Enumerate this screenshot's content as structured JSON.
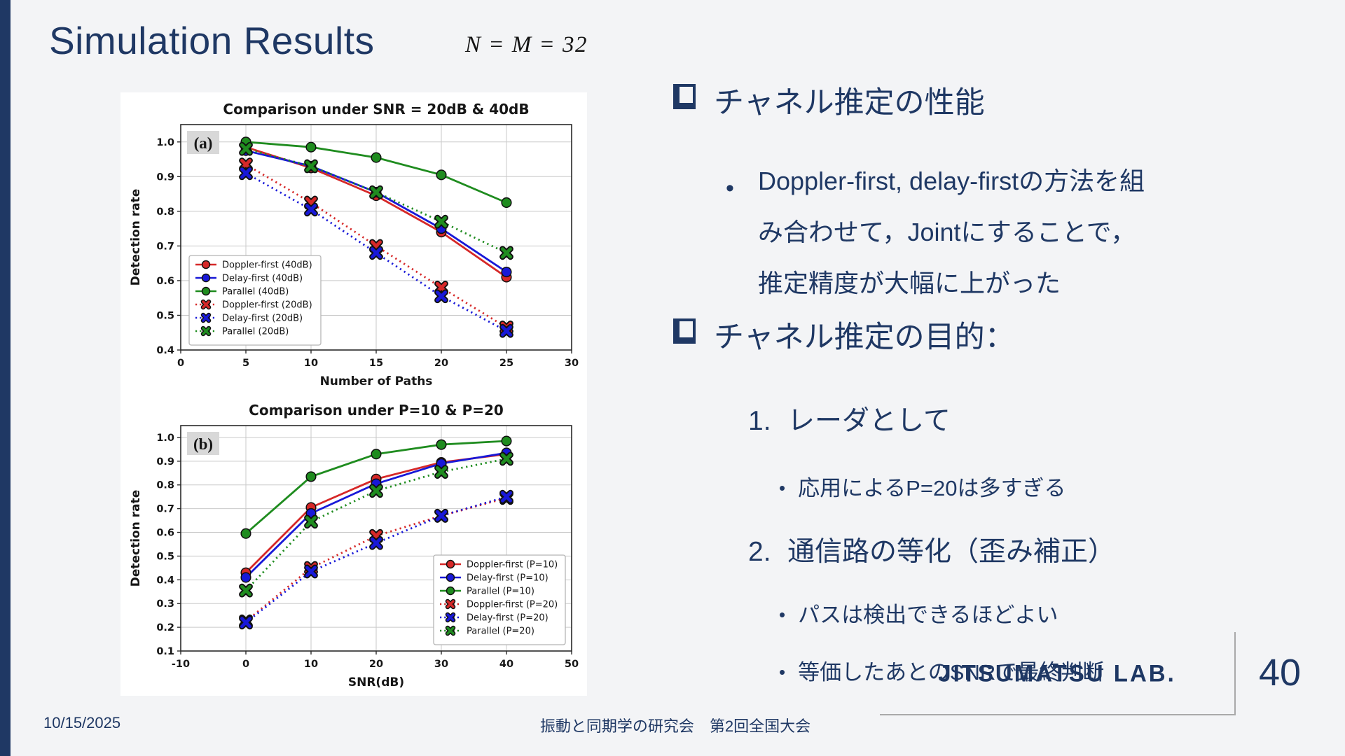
{
  "slide": {
    "title": "Simulation Results",
    "formula": "N = M = 32"
  },
  "ui": {
    "dot": "•"
  },
  "content": {
    "sections": [
      {
        "bullet": "チャネル推定の性能",
        "lines": [
          "Doppler-first, delay-firstの方法を組",
          "み合わせて，Jointにすることで，",
          "推定精度が大幅に上がった"
        ]
      },
      {
        "bullet": "チャネル推定の目的：",
        "numbered": [
          {
            "num": "1.",
            "text": "レーダとして",
            "subs": [
              "応用によるP=20は多すぎる"
            ]
          },
          {
            "num": "2.",
            "text": "通信路の等化（歪み補正）",
            "subs": [
              "パスは検出できるほどよい",
              "等価したあとのSNRで最終判断"
            ]
          }
        ]
      }
    ]
  },
  "footer": {
    "date": "10/15/2025",
    "center": "振動と同期学の研究会　第2回全国大会",
    "logo": "JITSUMATSU LAB.",
    "page": "40"
  },
  "chart_data": [
    {
      "type": "line",
      "title": "Comparison under SNR = 20dB & 40dB",
      "panel_label": "(a)",
      "xlabel": "Number of Paths",
      "ylabel": "Detection rate",
      "x": [
        5,
        10,
        15,
        20,
        25
      ],
      "xlim": [
        0,
        30
      ],
      "ylim": [
        0.4,
        1.05
      ],
      "xticks": [
        0,
        5,
        10,
        15,
        20,
        25,
        30
      ],
      "yticks": [
        0.4,
        0.5,
        0.6,
        0.7,
        0.8,
        0.9,
        1.0
      ],
      "grid": true,
      "legend_position": "lower-left",
      "series": [
        {
          "name": "Doppler-first (40dB)",
          "color": "#d62828",
          "style": "solid",
          "marker": "circle",
          "values": [
            0.985,
            0.925,
            0.845,
            0.74,
            0.61
          ]
        },
        {
          "name": "Delay-first (40dB)",
          "color": "#1818d8",
          "style": "solid",
          "marker": "circle",
          "values": [
            0.975,
            0.93,
            0.855,
            0.75,
            0.625
          ]
        },
        {
          "name": "Parallel (40dB)",
          "color": "#1f8c1f",
          "style": "solid",
          "marker": "circle",
          "values": [
            1.0,
            0.985,
            0.955,
            0.905,
            0.825
          ]
        },
        {
          "name": "Doppler-first (20dB)",
          "color": "#d62828",
          "style": "dotted",
          "marker": "x",
          "values": [
            0.935,
            0.825,
            0.7,
            0.58,
            0.465
          ]
        },
        {
          "name": "Delay-first (20dB)",
          "color": "#1818d8",
          "style": "dotted",
          "marker": "x",
          "values": [
            0.91,
            0.805,
            0.68,
            0.555,
            0.455
          ]
        },
        {
          "name": "Parallel (20dB)",
          "color": "#1f8c1f",
          "style": "dotted",
          "marker": "x",
          "values": [
            0.98,
            0.93,
            0.855,
            0.77,
            0.68
          ]
        }
      ]
    },
    {
      "type": "line",
      "title": "Comparison under P=10 & P=20",
      "panel_label": "(b)",
      "xlabel": "SNR(dB)",
      "ylabel": "Detection rate",
      "x": [
        0,
        10,
        20,
        30,
        40
      ],
      "xlim": [
        -10,
        50
      ],
      "ylim": [
        0.1,
        1.05
      ],
      "xticks": [
        -10,
        0,
        10,
        20,
        30,
        40,
        50
      ],
      "yticks": [
        0.1,
        0.2,
        0.3,
        0.4,
        0.5,
        0.6,
        0.7,
        0.8,
        0.9,
        1.0
      ],
      "grid": true,
      "legend_position": "lower-right",
      "series": [
        {
          "name": "Doppler-first (P=10)",
          "color": "#d62828",
          "style": "solid",
          "marker": "circle",
          "values": [
            0.43,
            0.705,
            0.825,
            0.895,
            0.93
          ]
        },
        {
          "name": "Delay-first (P=10)",
          "color": "#1818d8",
          "style": "solid",
          "marker": "circle",
          "values": [
            0.41,
            0.68,
            0.805,
            0.89,
            0.935
          ]
        },
        {
          "name": "Parallel (P=10)",
          "color": "#1f8c1f",
          "style": "solid",
          "marker": "circle",
          "values": [
            0.595,
            0.835,
            0.93,
            0.97,
            0.985
          ]
        },
        {
          "name": "Doppler-first (P=20)",
          "color": "#d62828",
          "style": "dotted",
          "marker": "x",
          "values": [
            0.225,
            0.45,
            0.585,
            0.67,
            0.745
          ]
        },
        {
          "name": "Delay-first (P=20)",
          "color": "#1818d8",
          "style": "dotted",
          "marker": "x",
          "values": [
            0.22,
            0.435,
            0.555,
            0.67,
            0.75
          ]
        },
        {
          "name": "Parallel (P=20)",
          "color": "#1f8c1f",
          "style": "dotted",
          "marker": "x",
          "values": [
            0.355,
            0.645,
            0.775,
            0.855,
            0.91
          ]
        }
      ]
    }
  ]
}
